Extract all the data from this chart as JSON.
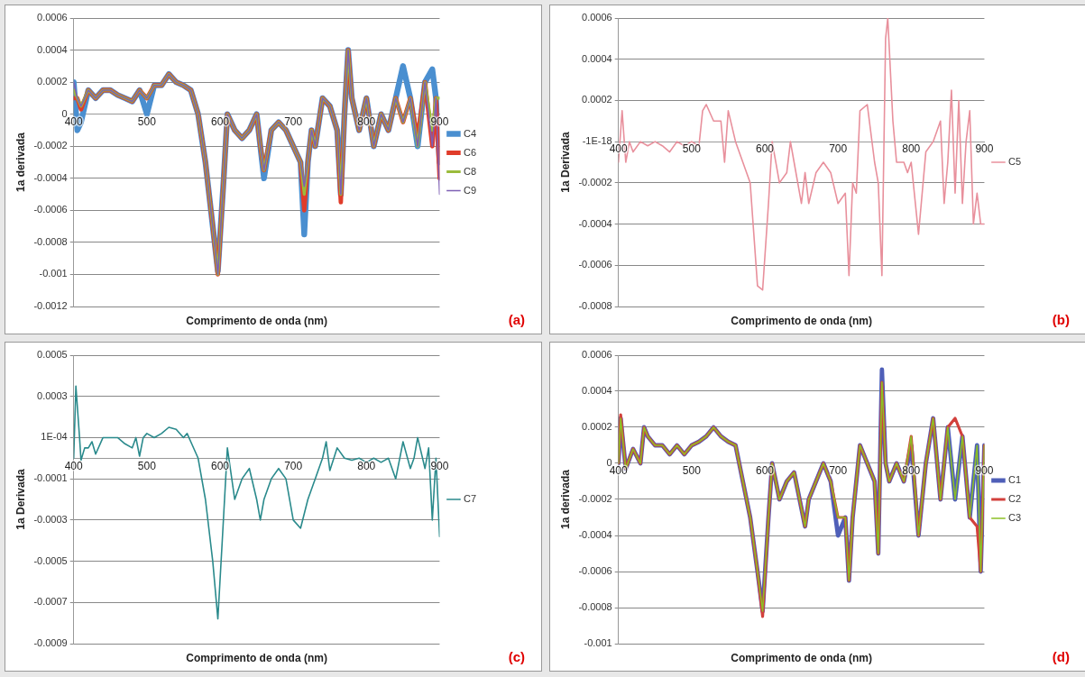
{
  "chart_data": [
    {
      "type": "line",
      "xlabel": "Comprimento de onda (nm)",
      "ylabel": "1a derivada",
      "annotations": [
        "(a)"
      ],
      "grid": "y",
      "legend": "right",
      "marker": "none",
      "line_style": "solid",
      "xlim": [
        400,
        900
      ],
      "xticks": [
        400,
        500,
        600,
        700,
        800,
        900
      ],
      "ylim": [
        -0.0012,
        0.0006
      ],
      "yticks": [
        0.0006,
        0.0004,
        0.0002,
        0,
        -0.0002,
        -0.0004,
        -0.0006,
        -0.0008,
        -0.001,
        -0.0012
      ],
      "x": [
        400,
        405,
        410,
        420,
        430,
        440,
        450,
        460,
        470,
        480,
        490,
        500,
        510,
        520,
        530,
        540,
        550,
        560,
        570,
        580,
        590,
        597,
        605,
        610,
        620,
        630,
        640,
        650,
        655,
        660,
        670,
        680,
        690,
        700,
        710,
        715,
        720,
        725,
        730,
        740,
        750,
        760,
        765,
        770,
        775,
        780,
        790,
        800,
        810,
        820,
        830,
        840,
        850,
        860,
        870,
        880,
        890,
        895,
        900
      ],
      "series": [
        {
          "name": "C4",
          "color": "#4a8fd0",
          "values": [
            0.0002,
            -0.0001,
            -5e-05,
            0.00015,
            0.0001,
            0.00015,
            0.00015,
            0.00012,
            0.0001,
            8e-05,
            0.00015,
            0.0,
            0.00018,
            0.00018,
            0.00025,
            0.0002,
            0.00018,
            0.00015,
            0.0,
            -0.0003,
            -0.0007,
            -0.00098,
            -0.0004,
            0.0,
            -0.0001,
            -0.00015,
            -0.0001,
            0.0,
            -0.0002,
            -0.0004,
            -0.0001,
            -5e-05,
            -0.0001,
            -0.0002,
            -0.0003,
            -0.00075,
            -0.0003,
            -0.0001,
            -0.0002,
            0.0001,
            5e-05,
            -0.0001,
            -0.0005,
            0.0,
            0.0004,
            0.0001,
            -0.0001,
            0.0001,
            -0.0002,
            0.0,
            -0.0001,
            0.0001,
            0.0003,
            0.0001,
            -0.0002,
            0.0002,
            0.00028,
            0.0001,
            -0.0003
          ]
        },
        {
          "name": "C6",
          "color": "#e03c2a",
          "values": [
            0.0001,
            0.0001,
            3e-05,
            0.00015,
            0.0001,
            0.00015,
            0.00015,
            0.00012,
            0.0001,
            8e-05,
            0.00015,
            0.0001,
            0.00018,
            0.00018,
            0.00025,
            0.0002,
            0.00018,
            0.00015,
            0.0,
            -0.0003,
            -0.0007,
            -0.001,
            -0.0004,
            0.0,
            -0.0001,
            -0.00015,
            -0.0001,
            0.0,
            -0.0002,
            -0.00035,
            -0.0001,
            -5e-05,
            -0.0001,
            -0.0002,
            -0.0003,
            -0.0006,
            -0.0003,
            -0.0001,
            -0.0002,
            0.0001,
            5e-05,
            -0.0001,
            -0.00055,
            0.0,
            0.0004,
            0.0001,
            -0.0001,
            0.0001,
            -0.0002,
            0.0,
            -0.0001,
            0.0001,
            -5e-05,
            0.0001,
            -0.00015,
            0.0002,
            -0.0002,
            0.0001,
            -0.0004
          ]
        },
        {
          "name": "C8",
          "color": "#9bbb3b",
          "values": [
            0.00015,
            0.0001,
            5e-05,
            0.00015,
            0.0001,
            0.00015,
            0.00015,
            0.00012,
            0.0001,
            8e-05,
            0.00015,
            0.0001,
            0.00018,
            0.00018,
            0.00025,
            0.0002,
            0.00018,
            0.00015,
            0.0,
            -0.0003,
            -0.0007,
            -0.001,
            -0.0004,
            0.0,
            -0.0001,
            -0.00015,
            -0.0001,
            0.0,
            -0.0002,
            -0.00035,
            -0.0001,
            -5e-05,
            -0.0001,
            -0.0002,
            -0.0003,
            -0.0005,
            -0.0003,
            -0.0001,
            -0.0002,
            0.0001,
            5e-05,
            -0.0001,
            -0.0005,
            0.0,
            0.0004,
            0.0001,
            -0.0001,
            0.0001,
            -0.0002,
            0.0,
            -0.0001,
            0.0001,
            -5e-05,
            0.0001,
            -0.0002,
            0.0002,
            -0.0001,
            0.0001,
            0.0001
          ]
        },
        {
          "name": "C9",
          "color": "#7e5fb4",
          "values": [
            0.0002,
            0.0001,
            5e-05,
            0.00015,
            0.0001,
            0.00015,
            0.00015,
            0.00012,
            0.0001,
            8e-05,
            0.00015,
            0.0001,
            0.00018,
            0.00018,
            0.00025,
            0.0002,
            0.00018,
            0.00015,
            0.0,
            -0.0003,
            -0.0007,
            -0.001,
            -0.0004,
            0.0,
            -0.0001,
            -0.00015,
            -0.0001,
            0.0,
            -0.0002,
            -0.00035,
            -0.0001,
            -5e-05,
            -0.0001,
            -0.0002,
            -0.0003,
            -0.00045,
            -0.0003,
            -0.0001,
            -0.0002,
            0.0001,
            5e-05,
            -0.0001,
            -0.0005,
            0.0,
            0.0004,
            0.0001,
            -0.0001,
            0.0001,
            -0.0002,
            0.0,
            -0.0001,
            0.0001,
            -5e-05,
            0.0001,
            -0.0002,
            0.0002,
            -0.0002,
            0.0001,
            -0.0005
          ]
        }
      ]
    },
    {
      "type": "line",
      "xlabel": "Comprimento de onda (nm)",
      "ylabel": "1a Derivada",
      "annotations": [
        "(b)"
      ],
      "grid": "y",
      "legend": "right",
      "marker": "none",
      "line_style": "solid",
      "xlim": [
        400,
        900
      ],
      "xticks": [
        400,
        500,
        600,
        700,
        800,
        900
      ],
      "ylim": [
        -0.0008,
        0.0006
      ],
      "yticks": [
        0.0006,
        0.0004,
        0.0002,
        {
          "value": 0,
          "label": "-1E-18"
        },
        -0.0002,
        -0.0004,
        -0.0006,
        -0.0008
      ],
      "x": [
        400,
        405,
        410,
        415,
        420,
        430,
        440,
        450,
        460,
        470,
        480,
        490,
        500,
        510,
        515,
        520,
        530,
        540,
        545,
        550,
        560,
        570,
        580,
        590,
        597,
        605,
        610,
        620,
        630,
        635,
        640,
        650,
        655,
        660,
        670,
        680,
        690,
        700,
        710,
        715,
        720,
        725,
        730,
        740,
        750,
        755,
        760,
        765,
        768,
        775,
        780,
        790,
        795,
        800,
        810,
        820,
        830,
        840,
        845,
        850,
        855,
        860,
        865,
        870,
        875,
        880,
        885,
        890,
        895,
        900
      ],
      "series": [
        {
          "name": "C5",
          "color": "#e8909c",
          "values": [
            -0.0001,
            0.00015,
            -0.0001,
            0.0,
            -5e-05,
            0.0,
            -2e-05,
            0.0,
            -2e-05,
            -5e-05,
            0.0,
            -2e-05,
            0.0,
            -2e-05,
            0.00015,
            0.00018,
            0.0001,
            0.0001,
            -0.0001,
            0.00015,
            0.0,
            -0.0001,
            -0.0002,
            -0.0007,
            -0.00072,
            -0.0003,
            0.0,
            -0.0002,
            -0.00015,
            0.0,
            -0.0001,
            -0.0003,
            -0.00015,
            -0.0003,
            -0.00015,
            -0.0001,
            -0.00015,
            -0.0003,
            -0.00025,
            -0.00065,
            -0.0002,
            -0.00025,
            0.00015,
            0.00018,
            -0.0001,
            -0.0002,
            -0.00065,
            0.0005,
            0.0006,
            0.0001,
            -0.0001,
            -0.0001,
            -0.00015,
            -0.0001,
            -0.00045,
            -5e-05,
            0.0,
            0.0001,
            -0.0003,
            -0.0001,
            0.00025,
            -0.00025,
            0.0002,
            -0.0003,
            0.0,
            0.00015,
            -0.0004,
            -0.00025,
            -0.0004,
            -0.0004
          ]
        }
      ]
    },
    {
      "type": "line",
      "xlabel": "Comprimento de onda (nm)",
      "ylabel": "1a Derivada",
      "annotations": [
        "(c)"
      ],
      "grid": "y",
      "legend": "right",
      "marker": "none",
      "line_style": "solid",
      "xlim": [
        400,
        900
      ],
      "xticks": [
        400,
        500,
        600,
        700,
        800,
        900
      ],
      "ylim": [
        -0.0009,
        0.0005
      ],
      "yticks": [
        0.0005,
        0.0003,
        {
          "value": 0.0001,
          "label": "1E-04"
        },
        -0.0001,
        -0.0003,
        -0.0005,
        -0.0007,
        -0.0009
      ],
      "x": [
        400,
        403,
        408,
        410,
        415,
        420,
        425,
        430,
        440,
        450,
        460,
        470,
        480,
        485,
        490,
        495,
        500,
        510,
        520,
        530,
        540,
        550,
        555,
        560,
        570,
        580,
        590,
        597,
        603,
        610,
        620,
        630,
        640,
        650,
        655,
        660,
        670,
        680,
        690,
        700,
        710,
        720,
        730,
        740,
        745,
        750,
        760,
        770,
        780,
        790,
        800,
        810,
        820,
        830,
        840,
        850,
        860,
        865,
        870,
        880,
        885,
        890,
        895,
        900
      ],
      "series": [
        {
          "name": "C7",
          "color": "#2a8a8c",
          "values": [
            0.0,
            0.00035,
            0.0001,
            -1e-05,
            5e-05,
            5e-05,
            8e-05,
            2e-05,
            0.0001,
            0.0001,
            0.0001,
            7e-05,
            5e-05,
            0.0001,
            1e-05,
            0.0001,
            0.00012,
            0.0001,
            0.00012,
            0.00015,
            0.00014,
            0.0001,
            0.00012,
            8e-05,
            0.0,
            -0.0002,
            -0.0005,
            -0.00078,
            -0.0004,
            5e-05,
            -0.0002,
            -0.0001,
            -5e-05,
            -0.0002,
            -0.0003,
            -0.0002,
            -0.0001,
            -5e-05,
            -0.0001,
            -0.0003,
            -0.00034,
            -0.0002,
            -0.0001,
            0.0,
            8e-05,
            -6e-05,
            5e-05,
            0.0,
            -1e-05,
            0.0,
            -2e-05,
            0.0,
            -2e-05,
            0.0,
            -0.0001,
            8e-05,
            -5e-05,
            0.0,
            0.0001,
            -5e-05,
            5e-05,
            -0.0003,
            0.0,
            -0.00038
          ]
        }
      ]
    },
    {
      "type": "line",
      "xlabel": "Comprimento de onda (nm)",
      "ylabel": "1a derivada",
      "annotations": [
        "(d)"
      ],
      "grid": "y",
      "legend": "right",
      "marker": "none",
      "line_style": "solid",
      "xlim": [
        400,
        900
      ],
      "xticks": [
        400,
        500,
        600,
        700,
        800,
        900
      ],
      "ylim": [
        -0.001,
        0.0006
      ],
      "yticks": [
        0.0006,
        0.0004,
        0.0002,
        0,
        -0.0002,
        -0.0004,
        -0.0006,
        -0.0008,
        -0.001
      ],
      "x": [
        400,
        403,
        410,
        420,
        430,
        435,
        440,
        450,
        460,
        470,
        480,
        490,
        500,
        510,
        520,
        530,
        540,
        550,
        560,
        570,
        580,
        590,
        597,
        605,
        610,
        620,
        630,
        640,
        650,
        655,
        660,
        670,
        680,
        690,
        700,
        710,
        715,
        720,
        730,
        740,
        750,
        755,
        760,
        765,
        770,
        780,
        790,
        800,
        810,
        820,
        830,
        840,
        850,
        860,
        870,
        880,
        890,
        895,
        900
      ],
      "series": [
        {
          "name": "C1",
          "color": "#4f5fb8",
          "values": [
            0.0,
            0.00025,
            -3e-05,
            8e-05,
            0.0,
            0.0002,
            0.00015,
            0.0001,
            0.0001,
            5e-05,
            0.0001,
            5e-05,
            0.0001,
            0.00012,
            0.00015,
            0.0002,
            0.00015,
            0.00012,
            0.0001,
            -0.0001,
            -0.0003,
            -0.0006,
            -0.00082,
            -0.0003,
            0.0,
            -0.0002,
            -0.0001,
            -5e-05,
            -0.00025,
            -0.00035,
            -0.0002,
            -0.0001,
            0.0,
            -0.0001,
            -0.0004,
            -0.0003,
            -0.00065,
            -0.0003,
            0.0001,
            0.0,
            -0.0001,
            -0.0005,
            0.00052,
            0.0,
            -0.0001,
            0.0,
            -0.0001,
            0.0001,
            -0.0004,
            0.0,
            0.00025,
            -0.0002,
            0.0002,
            -0.0002,
            0.00015,
            -0.0003,
            0.0001,
            -0.0006,
            0.0001
          ]
        },
        {
          "name": "C2",
          "color": "#d2403c",
          "values": [
            0.0,
            0.00027,
            -3e-05,
            8e-05,
            0.0,
            0.0002,
            0.00015,
            0.0001,
            0.0001,
            5e-05,
            0.0001,
            5e-05,
            0.0001,
            0.00012,
            0.00015,
            0.0002,
            0.00015,
            0.00012,
            0.0001,
            -0.0001,
            -0.0003,
            -0.0006,
            -0.00085,
            -0.0003,
            0.0,
            -0.0002,
            -0.0001,
            -5e-05,
            -0.00025,
            -0.00035,
            -0.0002,
            -0.0001,
            0.0,
            -0.0001,
            -0.0003,
            -0.0003,
            -0.00065,
            -0.0003,
            0.0001,
            0.0,
            -0.0001,
            -0.0005,
            0.00045,
            0.0,
            -0.0001,
            0.0,
            -0.0001,
            0.00015,
            -0.0004,
            0.0,
            0.00025,
            -0.0002,
            0.0002,
            0.00025,
            0.00015,
            -0.0003,
            -0.00035,
            -0.0006,
            0.0001
          ]
        },
        {
          "name": "C3",
          "color": "#8cbf26",
          "values": [
            0.0,
            0.00025,
            -3e-05,
            8e-05,
            0.0,
            0.0002,
            0.00015,
            0.0001,
            0.0001,
            5e-05,
            0.0001,
            5e-05,
            0.0001,
            0.00012,
            0.00015,
            0.0002,
            0.00015,
            0.00012,
            0.0001,
            -0.0001,
            -0.0003,
            -0.0006,
            -0.00082,
            -0.0003,
            0.0,
            -0.0002,
            -0.0001,
            -5e-05,
            -0.00025,
            -0.00035,
            -0.0002,
            -0.0001,
            0.0,
            -0.0001,
            -0.0003,
            -0.0003,
            -0.00065,
            -0.0003,
            0.0001,
            0.0,
            -0.0001,
            -0.0005,
            0.00045,
            0.0,
            -0.0001,
            0.0,
            -0.0001,
            0.00015,
            -0.0004,
            0.0,
            0.00025,
            -0.0002,
            0.0002,
            -0.0002,
            0.00015,
            -0.0003,
            0.0001,
            -0.0006,
            0.0001
          ]
        }
      ]
    }
  ]
}
